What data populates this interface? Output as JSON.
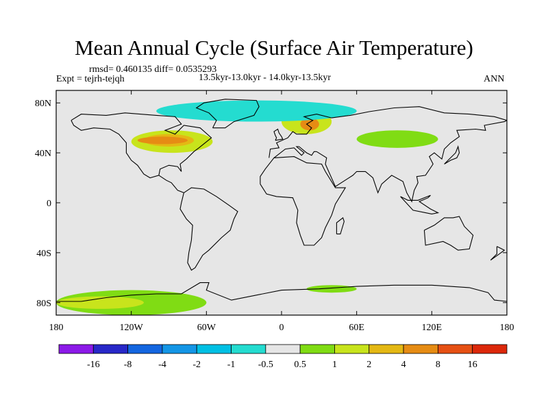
{
  "header": {
    "title": "Mean Annual Cycle (Surface Air Temperature)",
    "stats": "rmsd= 0.460135 diff= 0.0535293",
    "expt": "Expt = tejrh-tejqh",
    "period": "13.5kyr-13.0kyr - 14.0kyr-13.5kyr",
    "season": "ANN"
  },
  "chart_data": {
    "type": "heatmap",
    "title": "Mean Annual Cycle (Surface Air Temperature)",
    "projection": "cylindrical equidistant (global map)",
    "x": {
      "range": [
        -180,
        180
      ],
      "ticks": [
        -180,
        -120,
        -60,
        0,
        60,
        120,
        180
      ],
      "tick_labels": [
        "180",
        "120W",
        "60W",
        "0",
        "60E",
        "120E",
        "180"
      ]
    },
    "y": {
      "range": [
        -90,
        90
      ],
      "ticks": [
        80,
        40,
        0,
        -40,
        -80
      ],
      "tick_labels": [
        "80N",
        "40N",
        "0",
        "40S",
        "80S"
      ]
    },
    "colorbar": {
      "levels": [
        "-16",
        "-8",
        "-4",
        "-2",
        "-1",
        "-0.5",
        "0.5",
        "1",
        "2",
        "4",
        "8",
        "16"
      ],
      "colors": [
        "#8c1ae8",
        "#2828c8",
        "#1466e0",
        "#1496e6",
        "#00c0e4",
        "#24dcd0",
        "#e6e6e6",
        "#80dc14",
        "#c8e41c",
        "#e4b814",
        "#e68c14",
        "#e65014",
        "#dc280a"
      ]
    },
    "regions": [
      {
        "name": "north-america-warm-band",
        "bin": "1 to 2",
        "lon": [
          -120,
          -55
        ],
        "lat": [
          40,
          58
        ]
      },
      {
        "name": "north-america-warmer-core",
        "bin": "2 to 4",
        "lon": [
          -110,
          -70
        ],
        "lat": [
          45,
          55
        ]
      },
      {
        "name": "north-america-hot-spots",
        "bin": "4 to 8",
        "lon": [
          -115,
          -75
        ],
        "lat": [
          47,
          53
        ]
      },
      {
        "name": "scandinavia-warm-band",
        "bin": "1 to 2",
        "lon": [
          0,
          40
        ],
        "lat": [
          55,
          75
        ]
      },
      {
        "name": "scandinavia-core",
        "bin": "4 to 8",
        "lon": [
          15,
          30
        ],
        "lat": [
          58,
          68
        ]
      },
      {
        "name": "siberia-warm-band",
        "bin": "0.5 to 1",
        "lon": [
          60,
          125
        ],
        "lat": [
          44,
          58
        ]
      },
      {
        "name": "arctic-cool-patches",
        "bin": "-1 to -0.5",
        "lon": [
          -100,
          60
        ],
        "lat": [
          65,
          82
        ]
      },
      {
        "name": "antarctic-warm-band",
        "bin": "0.5 to 1",
        "lon": [
          -180,
          -60
        ],
        "lat": [
          -90,
          -70
        ]
      },
      {
        "name": "antarctic-warm-core",
        "bin": "1 to 2",
        "lon": [
          -180,
          -110
        ],
        "lat": [
          -85,
          -75
        ]
      },
      {
        "name": "southern-ocean-warm-patch",
        "bin": "0.5 to 1",
        "lon": [
          20,
          60
        ],
        "lat": [
          -72,
          -66
        ]
      }
    ]
  }
}
